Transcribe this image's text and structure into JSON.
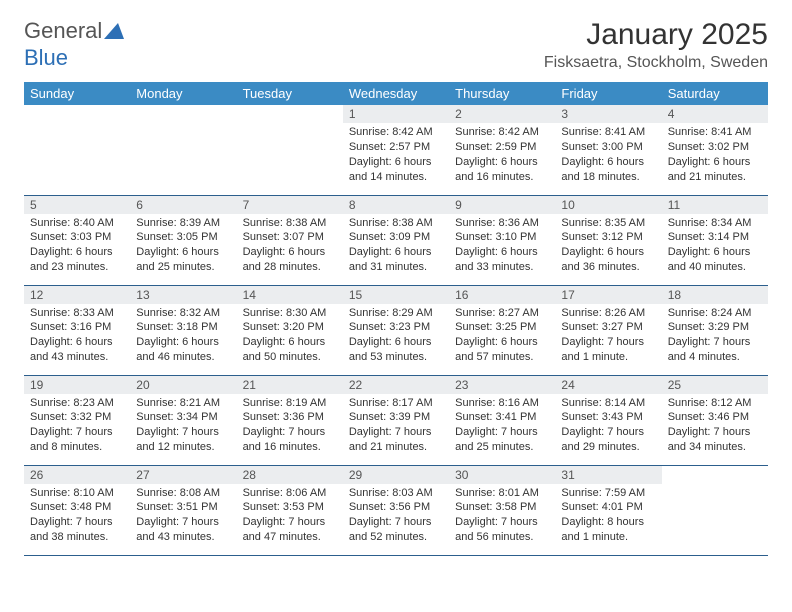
{
  "brand": {
    "part1": "General",
    "part2": "Blue"
  },
  "title": "January 2025",
  "location": "Fisksaetra, Stockholm, Sweden",
  "colors": {
    "header_bg": "#3b8bc4",
    "header_text": "#ffffff",
    "daynum_bg": "#ebedef",
    "rule": "#2c5f8d",
    "brand_blue": "#2d6fb5"
  },
  "weekdays": [
    "Sunday",
    "Monday",
    "Tuesday",
    "Wednesday",
    "Thursday",
    "Friday",
    "Saturday"
  ],
  "weeks": [
    [
      {
        "n": "",
        "sunrise": "",
        "sunset": "",
        "daylight": ""
      },
      {
        "n": "",
        "sunrise": "",
        "sunset": "",
        "daylight": ""
      },
      {
        "n": "",
        "sunrise": "",
        "sunset": "",
        "daylight": ""
      },
      {
        "n": "1",
        "sunrise": "Sunrise: 8:42 AM",
        "sunset": "Sunset: 2:57 PM",
        "daylight": "Daylight: 6 hours and 14 minutes."
      },
      {
        "n": "2",
        "sunrise": "Sunrise: 8:42 AM",
        "sunset": "Sunset: 2:59 PM",
        "daylight": "Daylight: 6 hours and 16 minutes."
      },
      {
        "n": "3",
        "sunrise": "Sunrise: 8:41 AM",
        "sunset": "Sunset: 3:00 PM",
        "daylight": "Daylight: 6 hours and 18 minutes."
      },
      {
        "n": "4",
        "sunrise": "Sunrise: 8:41 AM",
        "sunset": "Sunset: 3:02 PM",
        "daylight": "Daylight: 6 hours and 21 minutes."
      }
    ],
    [
      {
        "n": "5",
        "sunrise": "Sunrise: 8:40 AM",
        "sunset": "Sunset: 3:03 PM",
        "daylight": "Daylight: 6 hours and 23 minutes."
      },
      {
        "n": "6",
        "sunrise": "Sunrise: 8:39 AM",
        "sunset": "Sunset: 3:05 PM",
        "daylight": "Daylight: 6 hours and 25 minutes."
      },
      {
        "n": "7",
        "sunrise": "Sunrise: 8:38 AM",
        "sunset": "Sunset: 3:07 PM",
        "daylight": "Daylight: 6 hours and 28 minutes."
      },
      {
        "n": "8",
        "sunrise": "Sunrise: 8:38 AM",
        "sunset": "Sunset: 3:09 PM",
        "daylight": "Daylight: 6 hours and 31 minutes."
      },
      {
        "n": "9",
        "sunrise": "Sunrise: 8:36 AM",
        "sunset": "Sunset: 3:10 PM",
        "daylight": "Daylight: 6 hours and 33 minutes."
      },
      {
        "n": "10",
        "sunrise": "Sunrise: 8:35 AM",
        "sunset": "Sunset: 3:12 PM",
        "daylight": "Daylight: 6 hours and 36 minutes."
      },
      {
        "n": "11",
        "sunrise": "Sunrise: 8:34 AM",
        "sunset": "Sunset: 3:14 PM",
        "daylight": "Daylight: 6 hours and 40 minutes."
      }
    ],
    [
      {
        "n": "12",
        "sunrise": "Sunrise: 8:33 AM",
        "sunset": "Sunset: 3:16 PM",
        "daylight": "Daylight: 6 hours and 43 minutes."
      },
      {
        "n": "13",
        "sunrise": "Sunrise: 8:32 AM",
        "sunset": "Sunset: 3:18 PM",
        "daylight": "Daylight: 6 hours and 46 minutes."
      },
      {
        "n": "14",
        "sunrise": "Sunrise: 8:30 AM",
        "sunset": "Sunset: 3:20 PM",
        "daylight": "Daylight: 6 hours and 50 minutes."
      },
      {
        "n": "15",
        "sunrise": "Sunrise: 8:29 AM",
        "sunset": "Sunset: 3:23 PM",
        "daylight": "Daylight: 6 hours and 53 minutes."
      },
      {
        "n": "16",
        "sunrise": "Sunrise: 8:27 AM",
        "sunset": "Sunset: 3:25 PM",
        "daylight": "Daylight: 6 hours and 57 minutes."
      },
      {
        "n": "17",
        "sunrise": "Sunrise: 8:26 AM",
        "sunset": "Sunset: 3:27 PM",
        "daylight": "Daylight: 7 hours and 1 minute."
      },
      {
        "n": "18",
        "sunrise": "Sunrise: 8:24 AM",
        "sunset": "Sunset: 3:29 PM",
        "daylight": "Daylight: 7 hours and 4 minutes."
      }
    ],
    [
      {
        "n": "19",
        "sunrise": "Sunrise: 8:23 AM",
        "sunset": "Sunset: 3:32 PM",
        "daylight": "Daylight: 7 hours and 8 minutes."
      },
      {
        "n": "20",
        "sunrise": "Sunrise: 8:21 AM",
        "sunset": "Sunset: 3:34 PM",
        "daylight": "Daylight: 7 hours and 12 minutes."
      },
      {
        "n": "21",
        "sunrise": "Sunrise: 8:19 AM",
        "sunset": "Sunset: 3:36 PM",
        "daylight": "Daylight: 7 hours and 16 minutes."
      },
      {
        "n": "22",
        "sunrise": "Sunrise: 8:17 AM",
        "sunset": "Sunset: 3:39 PM",
        "daylight": "Daylight: 7 hours and 21 minutes."
      },
      {
        "n": "23",
        "sunrise": "Sunrise: 8:16 AM",
        "sunset": "Sunset: 3:41 PM",
        "daylight": "Daylight: 7 hours and 25 minutes."
      },
      {
        "n": "24",
        "sunrise": "Sunrise: 8:14 AM",
        "sunset": "Sunset: 3:43 PM",
        "daylight": "Daylight: 7 hours and 29 minutes."
      },
      {
        "n": "25",
        "sunrise": "Sunrise: 8:12 AM",
        "sunset": "Sunset: 3:46 PM",
        "daylight": "Daylight: 7 hours and 34 minutes."
      }
    ],
    [
      {
        "n": "26",
        "sunrise": "Sunrise: 8:10 AM",
        "sunset": "Sunset: 3:48 PM",
        "daylight": "Daylight: 7 hours and 38 minutes."
      },
      {
        "n": "27",
        "sunrise": "Sunrise: 8:08 AM",
        "sunset": "Sunset: 3:51 PM",
        "daylight": "Daylight: 7 hours and 43 minutes."
      },
      {
        "n": "28",
        "sunrise": "Sunrise: 8:06 AM",
        "sunset": "Sunset: 3:53 PM",
        "daylight": "Daylight: 7 hours and 47 minutes."
      },
      {
        "n": "29",
        "sunrise": "Sunrise: 8:03 AM",
        "sunset": "Sunset: 3:56 PM",
        "daylight": "Daylight: 7 hours and 52 minutes."
      },
      {
        "n": "30",
        "sunrise": "Sunrise: 8:01 AM",
        "sunset": "Sunset: 3:58 PM",
        "daylight": "Daylight: 7 hours and 56 minutes."
      },
      {
        "n": "31",
        "sunrise": "Sunrise: 7:59 AM",
        "sunset": "Sunset: 4:01 PM",
        "daylight": "Daylight: 8 hours and 1 minute."
      },
      {
        "n": "",
        "sunrise": "",
        "sunset": "",
        "daylight": ""
      }
    ]
  ]
}
